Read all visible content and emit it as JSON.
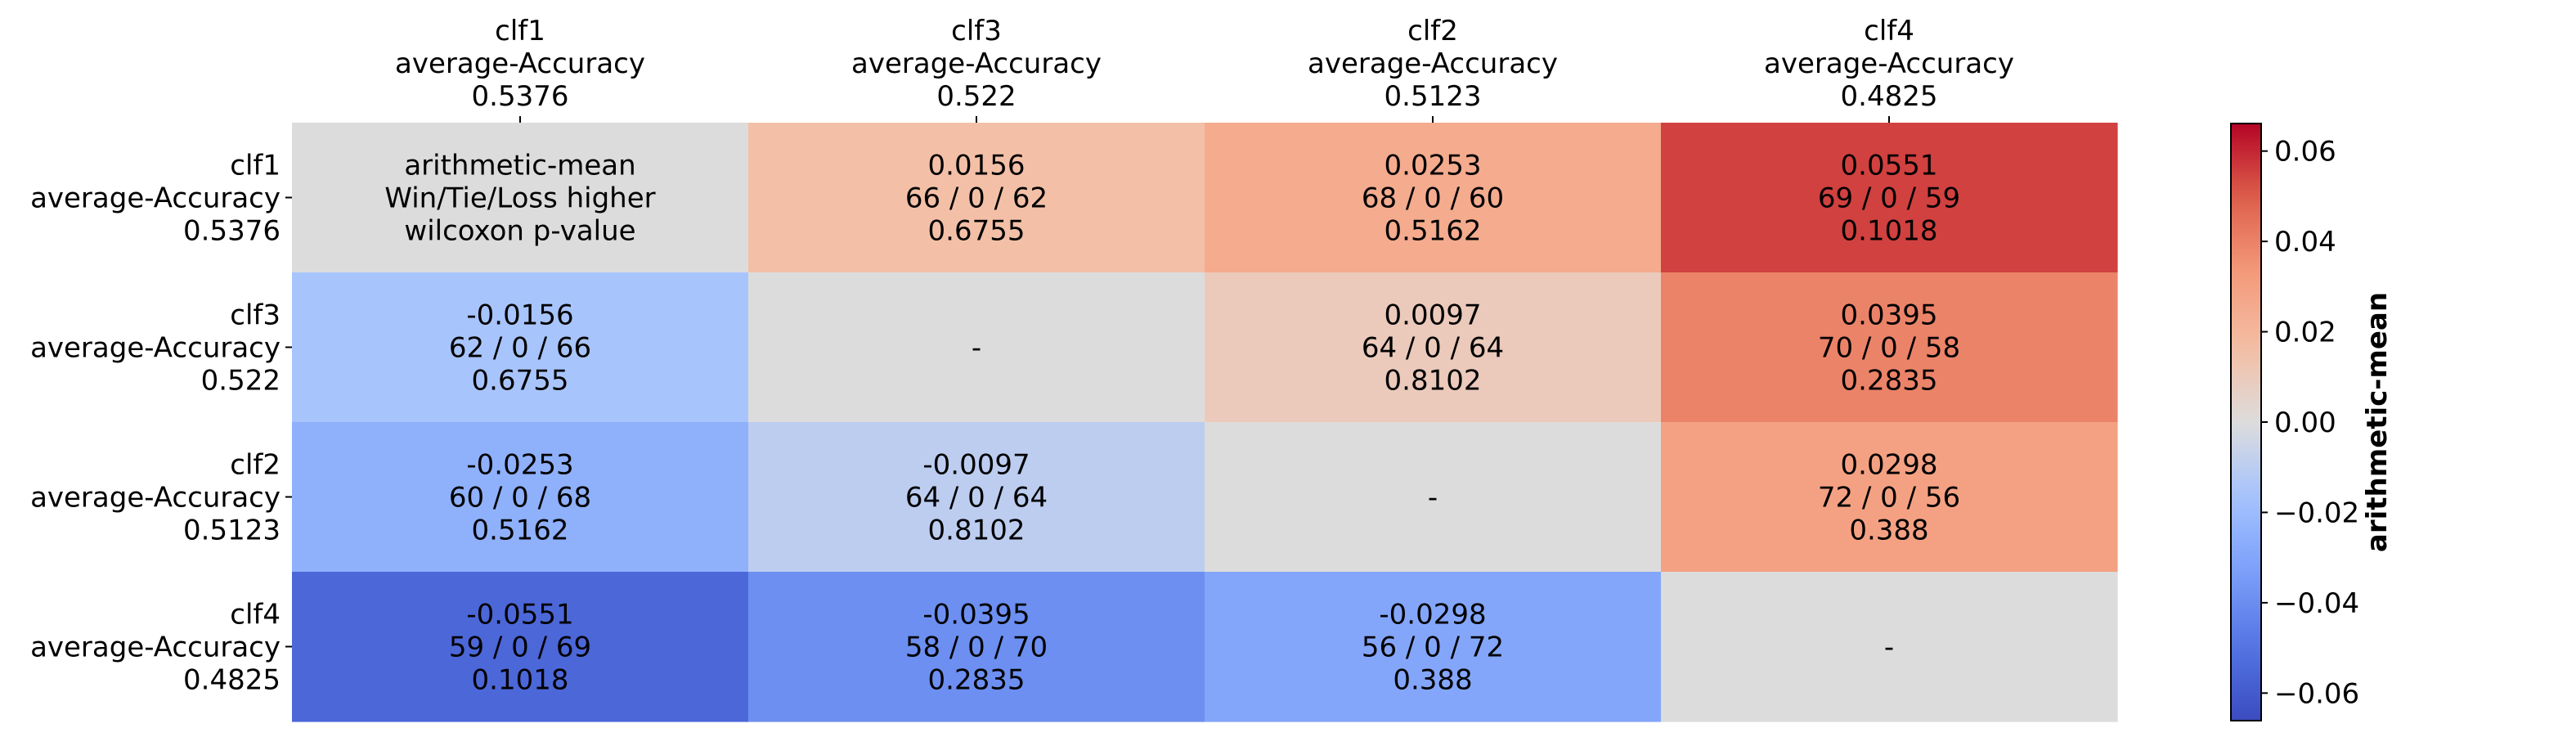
{
  "chart_data": {
    "type": "heatmap",
    "columns": [
      {
        "name": "clf1",
        "metric": "average-Accuracy",
        "score": "0.5376"
      },
      {
        "name": "clf3",
        "metric": "average-Accuracy",
        "score": "0.522"
      },
      {
        "name": "clf2",
        "metric": "average-Accuracy",
        "score": "0.5123"
      },
      {
        "name": "clf4",
        "metric": "average-Accuracy",
        "score": "0.4825"
      }
    ],
    "rows": [
      {
        "name": "clf1",
        "metric": "average-Accuracy",
        "score": "0.5376"
      },
      {
        "name": "clf3",
        "metric": "average-Accuracy",
        "score": "0.522"
      },
      {
        "name": "clf2",
        "metric": "average-Accuracy",
        "score": "0.5123"
      },
      {
        "name": "clf4",
        "metric": "average-Accuracy",
        "score": "0.4825"
      }
    ],
    "cells": [
      [
        {
          "value": 0,
          "lines": [
            "arithmetic-mean",
            "Win/Tie/Loss higher",
            "wilcoxon p-value"
          ]
        },
        {
          "value": 0.0156,
          "lines": [
            "0.0156",
            "66 / 0 / 62",
            "0.6755"
          ]
        },
        {
          "value": 0.0253,
          "lines": [
            "0.0253",
            "68 / 0 / 60",
            "0.5162"
          ]
        },
        {
          "value": 0.0551,
          "lines": [
            "0.0551",
            "69 / 0 / 59",
            "0.1018"
          ]
        }
      ],
      [
        {
          "value": -0.0156,
          "lines": [
            "-0.0156",
            "62 / 0 / 66",
            "0.6755"
          ]
        },
        {
          "value": 0,
          "lines": [
            "-"
          ]
        },
        {
          "value": 0.0097,
          "lines": [
            "0.0097",
            "64 / 0 / 64",
            "0.8102"
          ]
        },
        {
          "value": 0.0395,
          "lines": [
            "0.0395",
            "70 / 0 / 58",
            "0.2835"
          ]
        }
      ],
      [
        {
          "value": -0.0253,
          "lines": [
            "-0.0253",
            "60 / 0 / 68",
            "0.5162"
          ]
        },
        {
          "value": -0.0097,
          "lines": [
            "-0.0097",
            "64 / 0 / 64",
            "0.8102"
          ]
        },
        {
          "value": 0,
          "lines": [
            "-"
          ]
        },
        {
          "value": 0.0298,
          "lines": [
            "0.0298",
            "72 / 0 / 56",
            "0.388"
          ]
        }
      ],
      [
        {
          "value": -0.0551,
          "lines": [
            "-0.0551",
            "59 / 0 / 69",
            "0.1018"
          ]
        },
        {
          "value": -0.0395,
          "lines": [
            "-0.0395",
            "58 / 0 / 70",
            "0.2835"
          ]
        },
        {
          "value": -0.0298,
          "lines": [
            "-0.0298",
            "56 / 0 / 72",
            "0.388"
          ]
        },
        {
          "value": 0,
          "lines": [
            "-"
          ]
        }
      ]
    ],
    "colorbar": {
      "label": "arithmetic-mean",
      "range": [
        -0.0661,
        0.0661
      ],
      "ticks": [
        -0.06,
        -0.04,
        -0.02,
        0,
        0.02,
        0.04,
        0.06
      ],
      "tick_labels": [
        "−0.06",
        "−0.04",
        "−0.02",
        "0.00",
        "0.02",
        "0.04",
        "0.06"
      ],
      "colormap": "coolwarm"
    }
  }
}
